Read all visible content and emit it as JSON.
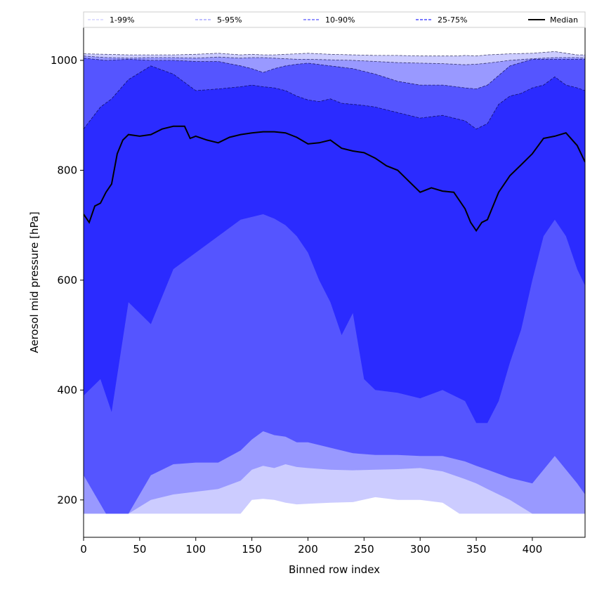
{
  "chart_data": {
    "type": "area",
    "xlabel": "Binned row index",
    "ylabel": "Aerosol mid pressure [hPa]",
    "xlim": [
      0,
      447
    ],
    "ylim": [
      132,
      1060
    ],
    "x_ticks": [
      0,
      50,
      100,
      150,
      200,
      250,
      300,
      350,
      400
    ],
    "y_ticks": [
      200,
      400,
      600,
      800,
      1000
    ],
    "grid": false,
    "legend_position": "top",
    "bands": [
      {
        "name": "1-99%",
        "color": "#ccccff",
        "x": [
          0,
          20,
          40,
          60,
          80,
          100,
          120,
          140,
          150,
          160,
          170,
          180,
          190,
          200,
          220,
          240,
          260,
          280,
          300,
          320,
          335,
          340,
          350,
          360,
          380,
          400,
          420,
          440,
          447
        ],
        "low": [
          175,
          175,
          175,
          175,
          175,
          175,
          175,
          175,
          200,
          202,
          200,
          195,
          192,
          193,
          195,
          196,
          205,
          200,
          200,
          195,
          175,
          175,
          175,
          175,
          175,
          175,
          175,
          175,
          175
        ],
        "high": [
          1012,
          1011,
          1010,
          1010,
          1010,
          1011,
          1013,
          1010,
          1011,
          1010,
          1010,
          1011,
          1012,
          1013,
          1011,
          1010,
          1009,
          1009,
          1008,
          1008,
          1008,
          1009,
          1008,
          1010,
          1012,
          1013,
          1016,
          1010,
          1010
        ]
      },
      {
        "name": "5-95%",
        "color": "#9999ff",
        "x": [
          0,
          20,
          40,
          60,
          80,
          100,
          120,
          140,
          150,
          160,
          170,
          180,
          190,
          200,
          220,
          240,
          260,
          280,
          300,
          320,
          340,
          350,
          360,
          380,
          400,
          420,
          440,
          447
        ],
        "low": [
          175,
          175,
          175,
          200,
          210,
          215,
          220,
          235,
          255,
          262,
          258,
          265,
          260,
          258,
          255,
          254,
          255,
          256,
          258,
          252,
          238,
          230,
          220,
          200,
          175,
          175,
          175,
          175
        ],
        "high": [
          1008,
          1005,
          1004,
          1005,
          1005,
          1004,
          1006,
          1004,
          1005,
          1005,
          1004,
          1003,
          1002,
          1002,
          1001,
          1000,
          998,
          996,
          995,
          994,
          992,
          993,
          995,
          1000,
          1003,
          1005,
          1005,
          1004
        ]
      },
      {
        "name": "10-90%",
        "color": "#5555ff",
        "x": [
          0,
          20,
          40,
          60,
          80,
          100,
          120,
          140,
          150,
          160,
          170,
          180,
          190,
          200,
          220,
          240,
          260,
          280,
          300,
          320,
          340,
          350,
          360,
          380,
          400,
          420,
          440,
          447
        ],
        "low": [
          245,
          175,
          175,
          245,
          265,
          268,
          268,
          290,
          310,
          325,
          318,
          315,
          305,
          305,
          295,
          285,
          282,
          282,
          280,
          280,
          270,
          262,
          255,
          240,
          230,
          280,
          230,
          210
        ],
        "high": [
          1004,
          1000,
          1002,
          1000,
          1000,
          998,
          998,
          990,
          985,
          978,
          985,
          990,
          993,
          995,
          990,
          985,
          975,
          962,
          955,
          955,
          950,
          948,
          955,
          990,
          1002,
          1002,
          1002,
          1002
        ]
      },
      {
        "name": "25-75%",
        "color": "#2b2bff",
        "x": [
          0,
          15,
          25,
          40,
          60,
          80,
          100,
          120,
          140,
          150,
          160,
          170,
          180,
          190,
          200,
          210,
          220,
          230,
          240,
          250,
          260,
          280,
          300,
          320,
          340,
          350,
          360,
          370,
          380,
          390,
          400,
          410,
          420,
          430,
          440,
          447
        ],
        "low": [
          390,
          420,
          360,
          560,
          520,
          620,
          650,
          680,
          710,
          715,
          720,
          712,
          700,
          680,
          650,
          600,
          560,
          500,
          540,
          420,
          400,
          395,
          385,
          400,
          380,
          340,
          340,
          380,
          450,
          510,
          600,
          680,
          710,
          680,
          620,
          590
        ],
        "high": [
          875,
          915,
          930,
          965,
          990,
          975,
          945,
          948,
          952,
          955,
          952,
          950,
          945,
          935,
          928,
          925,
          930,
          922,
          920,
          918,
          915,
          905,
          895,
          900,
          890,
          875,
          885,
          920,
          935,
          940,
          950,
          955,
          970,
          955,
          950,
          945
        ]
      }
    ],
    "median": {
      "name": "Median",
      "color": "#000000",
      "x": [
        0,
        5,
        10,
        15,
        20,
        25,
        30,
        35,
        40,
        50,
        60,
        70,
        80,
        90,
        95,
        100,
        110,
        120,
        130,
        140,
        150,
        160,
        170,
        180,
        190,
        200,
        210,
        220,
        230,
        240,
        250,
        260,
        270,
        280,
        290,
        300,
        310,
        320,
        330,
        340,
        345,
        350,
        355,
        360,
        370,
        380,
        390,
        400,
        410,
        420,
        430,
        440,
        447
      ],
      "y": [
        720,
        705,
        735,
        740,
        760,
        775,
        830,
        855,
        865,
        862,
        865,
        875,
        880,
        880,
        858,
        862,
        855,
        850,
        860,
        865,
        868,
        870,
        870,
        868,
        860,
        848,
        850,
        855,
        840,
        835,
        832,
        822,
        808,
        800,
        780,
        760,
        768,
        762,
        760,
        730,
        705,
        690,
        705,
        710,
        760,
        790,
        810,
        830,
        858,
        862,
        868,
        845,
        815
      ]
    }
  }
}
